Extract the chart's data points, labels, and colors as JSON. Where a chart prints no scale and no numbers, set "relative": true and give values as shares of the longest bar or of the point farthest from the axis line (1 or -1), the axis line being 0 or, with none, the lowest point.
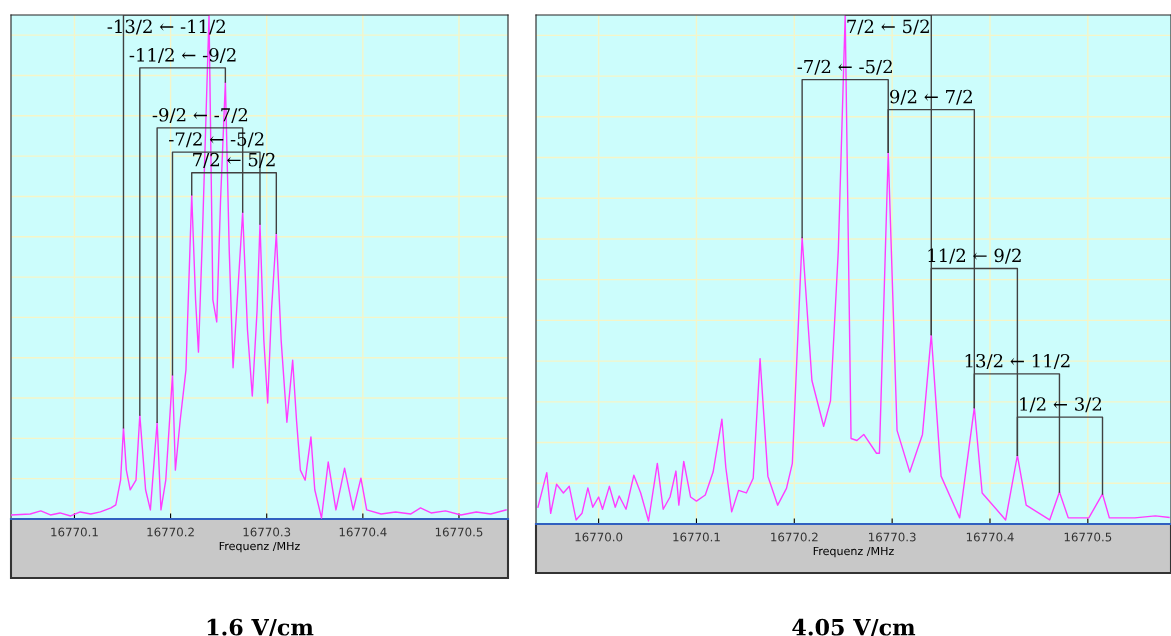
{
  "chart_data": [
    {
      "type": "line",
      "title": "1.6 V/cm",
      "xlabel": "Frequenz /MHz",
      "relative": true,
      "grid": true,
      "tick_labels": "x",
      "marker": "none",
      "line_style": "solid",
      "xlim": [
        16770.034,
        16770.551
      ],
      "xticks": [
        16770.1,
        16770.2,
        16770.3,
        16770.4,
        16770.5
      ],
      "series": [
        {
          "type": "line",
          "color": "#ff3cff",
          "x": [
            16770.034,
            16770.054,
            16770.065,
            16770.075,
            16770.085,
            16770.096,
            16770.106,
            16770.117,
            16770.127,
            16770.138,
            16770.143,
            16770.148,
            16770.151,
            16770.154,
            16770.158,
            16770.164,
            16770.168,
            16770.174,
            16770.179,
            16770.186,
            16770.19,
            16770.195,
            16770.202,
            16770.205,
            16770.21,
            16770.216,
            16770.222,
            16770.226,
            16770.229,
            16770.233,
            16770.24,
            16770.244,
            16770.248,
            16770.252,
            16770.257,
            16770.261,
            16770.265,
            16770.27,
            16770.275,
            16770.28,
            16770.285,
            16770.29,
            16770.293,
            16770.297,
            16770.301,
            16770.305,
            16770.31,
            16770.315,
            16770.321,
            16770.327,
            16770.331,
            16770.335,
            16770.34,
            16770.346,
            16770.35,
            16770.357,
            16770.364,
            16770.372,
            16770.381,
            16770.39,
            16770.398,
            16770.404,
            16770.419,
            16770.434,
            16770.45,
            16770.46,
            16770.471,
            16770.486,
            16770.502,
            16770.518,
            16770.533,
            16770.549
          ],
          "values": [
            0.008,
            0.01,
            0.016,
            0.008,
            0.012,
            0.006,
            0.014,
            0.01,
            0.014,
            0.022,
            0.028,
            0.077,
            0.181,
            0.097,
            0.058,
            0.077,
            0.206,
            0.058,
            0.018,
            0.192,
            0.018,
            0.077,
            0.286,
            0.097,
            0.196,
            0.296,
            0.643,
            0.435,
            0.331,
            0.554,
            1.0,
            0.435,
            0.391,
            0.633,
            0.867,
            0.534,
            0.3,
            0.454,
            0.609,
            0.375,
            0.244,
            0.415,
            0.585,
            0.355,
            0.23,
            0.415,
            0.567,
            0.355,
            0.192,
            0.315,
            0.196,
            0.097,
            0.077,
            0.163,
            0.058,
            0.002,
            0.113,
            0.018,
            0.101,
            0.018,
            0.081,
            0.018,
            0.01,
            0.014,
            0.01,
            0.022,
            0.012,
            0.016,
            0.008,
            0.014,
            0.01,
            0.018
          ]
        },
        {
          "type": "line",
          "color": "#404040",
          "x": [
            16770.151,
            16770.151,
            16770.24,
            16770.24
          ],
          "values": [
            0.181,
            1.0,
            1.0,
            1.0
          ]
        },
        {
          "type": "line",
          "color": "#404040",
          "x": [
            16770.168,
            16770.168,
            16770.257,
            16770.257
          ],
          "values": [
            0.206,
            0.895,
            0.895,
            0.867
          ]
        },
        {
          "type": "line",
          "color": "#404040",
          "x": [
            16770.186,
            16770.186,
            16770.275,
            16770.275
          ],
          "values": [
            0.192,
            0.776,
            0.776,
            0.609
          ]
        },
        {
          "type": "line",
          "color": "#404040",
          "x": [
            16770.202,
            16770.202,
            16770.293,
            16770.293
          ],
          "values": [
            0.286,
            0.728,
            0.728,
            0.585
          ]
        },
        {
          "type": "line",
          "color": "#404040",
          "x": [
            16770.222,
            16770.222,
            16770.31,
            16770.31
          ],
          "values": [
            0.643,
            0.687,
            0.687,
            0.567
          ]
        }
      ],
      "annotations": [
        {
          "text": "-13/2 ← -11/2",
          "x": 16770.196,
          "y": 1.0
        },
        {
          "text": "-11/2 ← -9/2",
          "x": 16770.213,
          "y": 0.895
        },
        {
          "text": "-9/2 ← -7/2",
          "x": 16770.231,
          "y": 0.776
        },
        {
          "text": "-7/2 ← -5/2",
          "x": 16770.248,
          "y": 0.728
        },
        {
          "text": "7/2 ← 5/2",
          "x": 16770.266,
          "y": 0.687
        }
      ]
    },
    {
      "type": "line",
      "title": "4.05 V/cm",
      "xlabel": "Frequenz /MHz",
      "relative": true,
      "grid": true,
      "tick_labels": "x",
      "marker": "none",
      "line_style": "solid",
      "xlim": [
        16769.936,
        16770.585
      ],
      "xticks": [
        {
          "value": 16770.0,
          "label": "16770.0"
        },
        16770.1,
        16770.2,
        16770.3,
        16770.4,
        16770.5
      ],
      "series": [
        {
          "type": "line",
          "color": "#ff3cff",
          "x": [
            16769.938,
            16769.947,
            16769.951,
            16769.957,
            16769.964,
            16769.97,
            16769.977,
            16769.983,
            16769.989,
            16769.994,
            16770.0,
            16770.004,
            16770.011,
            16770.017,
            16770.021,
            16770.028,
            16770.036,
            16770.043,
            16770.051,
            16770.06,
            16770.066,
            16770.073,
            16770.079,
            16770.082,
            16770.087,
            16770.094,
            16770.1,
            16770.109,
            16770.117,
            16770.126,
            16770.13,
            16770.136,
            16770.143,
            16770.151,
            16770.158,
            16770.165,
            16770.173,
            16770.183,
            16770.192,
            16770.198,
            16770.208,
            16770.218,
            16770.23,
            16770.237,
            16770.245,
            16770.252,
            16770.258,
            16770.264,
            16770.271,
            16770.284,
            16770.287,
            16770.296,
            16770.305,
            16770.318,
            16770.331,
            16770.34,
            16770.35,
            16770.369,
            16770.384,
            16770.392,
            16770.416,
            16770.428,
            16770.437,
            16770.461,
            16770.471,
            16770.48,
            16770.501,
            16770.515,
            16770.522,
            16770.548,
            16770.569,
            16770.583
          ],
          "values": [
            0.033,
            0.101,
            0.021,
            0.078,
            0.061,
            0.074,
            0.008,
            0.021,
            0.071,
            0.033,
            0.053,
            0.029,
            0.074,
            0.033,
            0.055,
            0.029,
            0.096,
            0.061,
            0.006,
            0.119,
            0.029,
            0.053,
            0.104,
            0.037,
            0.123,
            0.053,
            0.045,
            0.057,
            0.102,
            0.206,
            0.111,
            0.024,
            0.066,
            0.061,
            0.09,
            0.325,
            0.094,
            0.037,
            0.07,
            0.119,
            0.563,
            0.282,
            0.192,
            0.242,
            0.538,
            1.0,
            0.168,
            0.164,
            0.176,
            0.139,
            0.139,
            0.73,
            0.184,
            0.102,
            0.176,
            0.372,
            0.094,
            0.012,
            0.229,
            0.061,
            0.008,
            0.135,
            0.037,
            0.008,
            0.063,
            0.012,
            0.012,
            0.059,
            0.012,
            0.012,
            0.016,
            0.013
          ]
        },
        {
          "type": "line",
          "color": "#404040",
          "x": [
            16770.252,
            16770.252,
            16770.34,
            16770.34
          ],
          "values": [
            1.0,
            1.0,
            1.0,
            0.372
          ]
        },
        {
          "type": "line",
          "color": "#404040",
          "x": [
            16770.208,
            16770.208,
            16770.296,
            16770.296
          ],
          "values": [
            0.563,
            0.873,
            0.873,
            0.73
          ]
        },
        {
          "type": "line",
          "color": "#404040",
          "x": [
            16770.296,
            16770.296,
            16770.384,
            16770.384
          ],
          "values": [
            0.73,
            0.814,
            0.814,
            0.229
          ]
        },
        {
          "type": "line",
          "color": "#404040",
          "x": [
            16770.34,
            16770.34,
            16770.428,
            16770.428
          ],
          "values": [
            0.372,
            0.502,
            0.502,
            0.135
          ]
        },
        {
          "type": "line",
          "color": "#404040",
          "x": [
            16770.384,
            16770.384,
            16770.471,
            16770.471
          ],
          "values": [
            0.229,
            0.295,
            0.295,
            0.063
          ]
        },
        {
          "type": "line",
          "color": "#404040",
          "x": [
            16770.428,
            16770.428,
            16770.515,
            16770.515
          ],
          "values": [
            0.135,
            0.21,
            0.21,
            0.059
          ]
        }
      ],
      "annotations": [
        {
          "text": "7/2 ← 5/2",
          "x": 16770.296,
          "y": 1.0
        },
        {
          "text": "-7/2 ← -5/2",
          "x": 16770.252,
          "y": 0.873
        },
        {
          "text": "9/2 ← 7/2",
          "x": 16770.34,
          "y": 0.814
        },
        {
          "text": "11/2 ← 9/2",
          "x": 16770.384,
          "y": 0.502
        },
        {
          "text": "13/2 ← 11/2",
          "x": 16770.428,
          "y": 0.295
        },
        {
          "text": "1/2 ← 3/2",
          "x": 16770.472,
          "y": 0.21
        }
      ]
    }
  ]
}
